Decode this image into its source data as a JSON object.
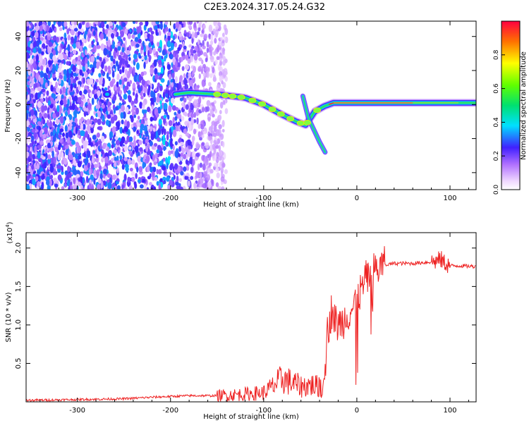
{
  "title": "C2E3.2024.317.05.24.G32",
  "chart_data": [
    {
      "type": "heatmap",
      "xlabel": "Height of straight line (km)",
      "ylabel": "Frequency (Hz)",
      "xlim": [
        -355,
        128
      ],
      "ylim": [
        -50,
        49
      ],
      "xticks": [
        -300,
        -200,
        -100,
        0,
        100
      ],
      "yticks": [
        -40,
        -20,
        0,
        20,
        40
      ],
      "xtick_labels": [
        "-300",
        "-200",
        "-100",
        "0",
        "100"
      ],
      "ytick_labels": [
        "-40",
        "-20",
        "0",
        "20",
        "40"
      ],
      "ridge": {
        "x": [
          -195,
          -180,
          -150,
          -120,
          -100,
          -80,
          -65,
          -55,
          -45,
          -35,
          -25,
          -10,
          0,
          20,
          60,
          100,
          128
        ],
        "y": [
          6,
          7,
          6,
          4,
          0,
          -6,
          -10,
          -12,
          -4,
          -1,
          1,
          1,
          1,
          1,
          1,
          1,
          1
        ]
      },
      "branch": {
        "x": [
          -58,
          -52,
          -46,
          -40,
          -34
        ],
        "y": [
          5,
          -8,
          -15,
          -22,
          -28
        ]
      },
      "colorbar": {
        "label": "Normalized spectral amplitude",
        "range": [
          0,
          1
        ],
        "ticks": [
          0.0,
          0.2,
          0.4,
          0.6,
          0.8
        ],
        "tick_labels": [
          "0.0",
          "0.2",
          "0.4",
          "0.6",
          "0.8"
        ]
      }
    },
    {
      "type": "line",
      "xlabel": "Height of straight line (km)",
      "ylabel": "SNR (10 * v/v)",
      "multiplier": "(x10",
      "multiplier_exp": "4",
      "multiplier_close": ")",
      "xlim": [
        -355,
        128
      ],
      "ylim": [
        0,
        2.2
      ],
      "xticks": [
        -300,
        -200,
        -100,
        0,
        100
      ],
      "yticks": [
        0.5,
        1.0,
        1.5,
        2.0
      ],
      "xtick_labels": [
        "-300",
        "-200",
        "-100",
        "0",
        "100"
      ],
      "ytick_labels": [
        "0.5",
        "1.0",
        "1.5",
        "2.0"
      ],
      "color": "#ee2222",
      "series": [
        {
          "x": [
            -355,
            -300,
            -250,
            -220,
            -200,
            -180,
            -150,
            -120,
            -100,
            -90,
            -80,
            -70,
            -60,
            -50,
            -42,
            -36,
            -33,
            -30,
            -27,
            -24,
            -20,
            -15,
            -10,
            -5,
            0,
            5,
            10,
            20,
            30,
            40,
            50,
            60,
            70,
            80,
            85,
            90,
            95,
            100,
            110,
            128
          ],
          "y": [
            0.02,
            0.03,
            0.04,
            0.06,
            0.07,
            0.08,
            0.08,
            0.1,
            0.12,
            0.2,
            0.3,
            0.25,
            0.2,
            0.22,
            0.2,
            0.3,
            0.8,
            1.0,
            1.2,
            1.05,
            1.0,
            1.05,
            1.15,
            1.2,
            1.35,
            1.45,
            1.6,
            1.72,
            1.78,
            1.8,
            1.8,
            1.8,
            1.81,
            1.82,
            1.83,
            1.85,
            1.8,
            1.77,
            1.77,
            1.76
          ]
        }
      ]
    }
  ]
}
